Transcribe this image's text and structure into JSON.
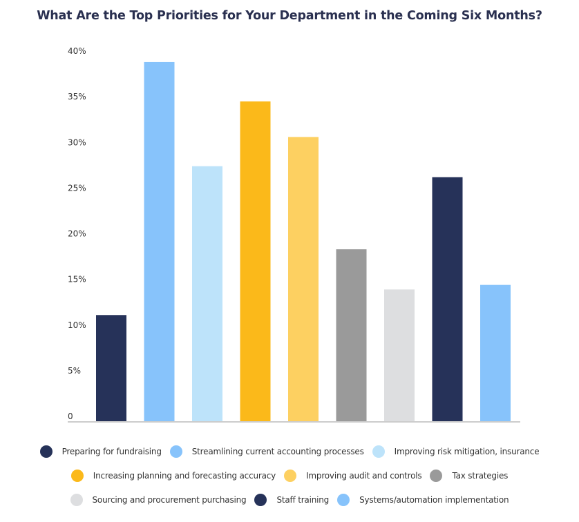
{
  "chart_data": {
    "type": "bar",
    "title": "What Are the Top Priorities for Your Department in the Coming Six Months?",
    "xlabel": "",
    "ylabel": "",
    "ylim": [
      0,
      40
    ],
    "yticks": [
      {
        "value": 0,
        "label": "0"
      },
      {
        "value": 5,
        "label": "5%"
      },
      {
        "value": 10,
        "label": "10%"
      },
      {
        "value": 15,
        "label": "15%"
      },
      {
        "value": 20,
        "label": "20%"
      },
      {
        "value": 25,
        "label": "25%"
      },
      {
        "value": 30,
        "label": "30%"
      },
      {
        "value": 35,
        "label": "35%"
      },
      {
        "value": 40,
        "label": "40%"
      }
    ],
    "grid": false,
    "legend_position": "bottom",
    "categories": [
      "Preparing for fundraising",
      "Streamlining current accounting processes",
      "Improving risk mitigation, insurance",
      "Increasing planning and forecasting accuracy",
      "Improving audit and controls",
      "Tax strategies",
      "Sourcing and procurement purchasing",
      "Staff training",
      "Systems/automation implementation"
    ],
    "values": [
      11.7,
      39.4,
      28.0,
      35.1,
      31.2,
      18.9,
      14.5,
      26.8,
      15.0
    ],
    "colors": [
      "#263259",
      "#87c3fb",
      "#bde3fa",
      "#fbb91a",
      "#fdd061",
      "#9a9a9a",
      "#dddee0",
      "#263259",
      "#87c3fb"
    ],
    "unit": "%"
  },
  "legend": {
    "rows": [
      [
        0,
        1,
        2
      ],
      [
        3,
        4,
        5
      ],
      [
        6,
        7,
        8
      ]
    ]
  }
}
